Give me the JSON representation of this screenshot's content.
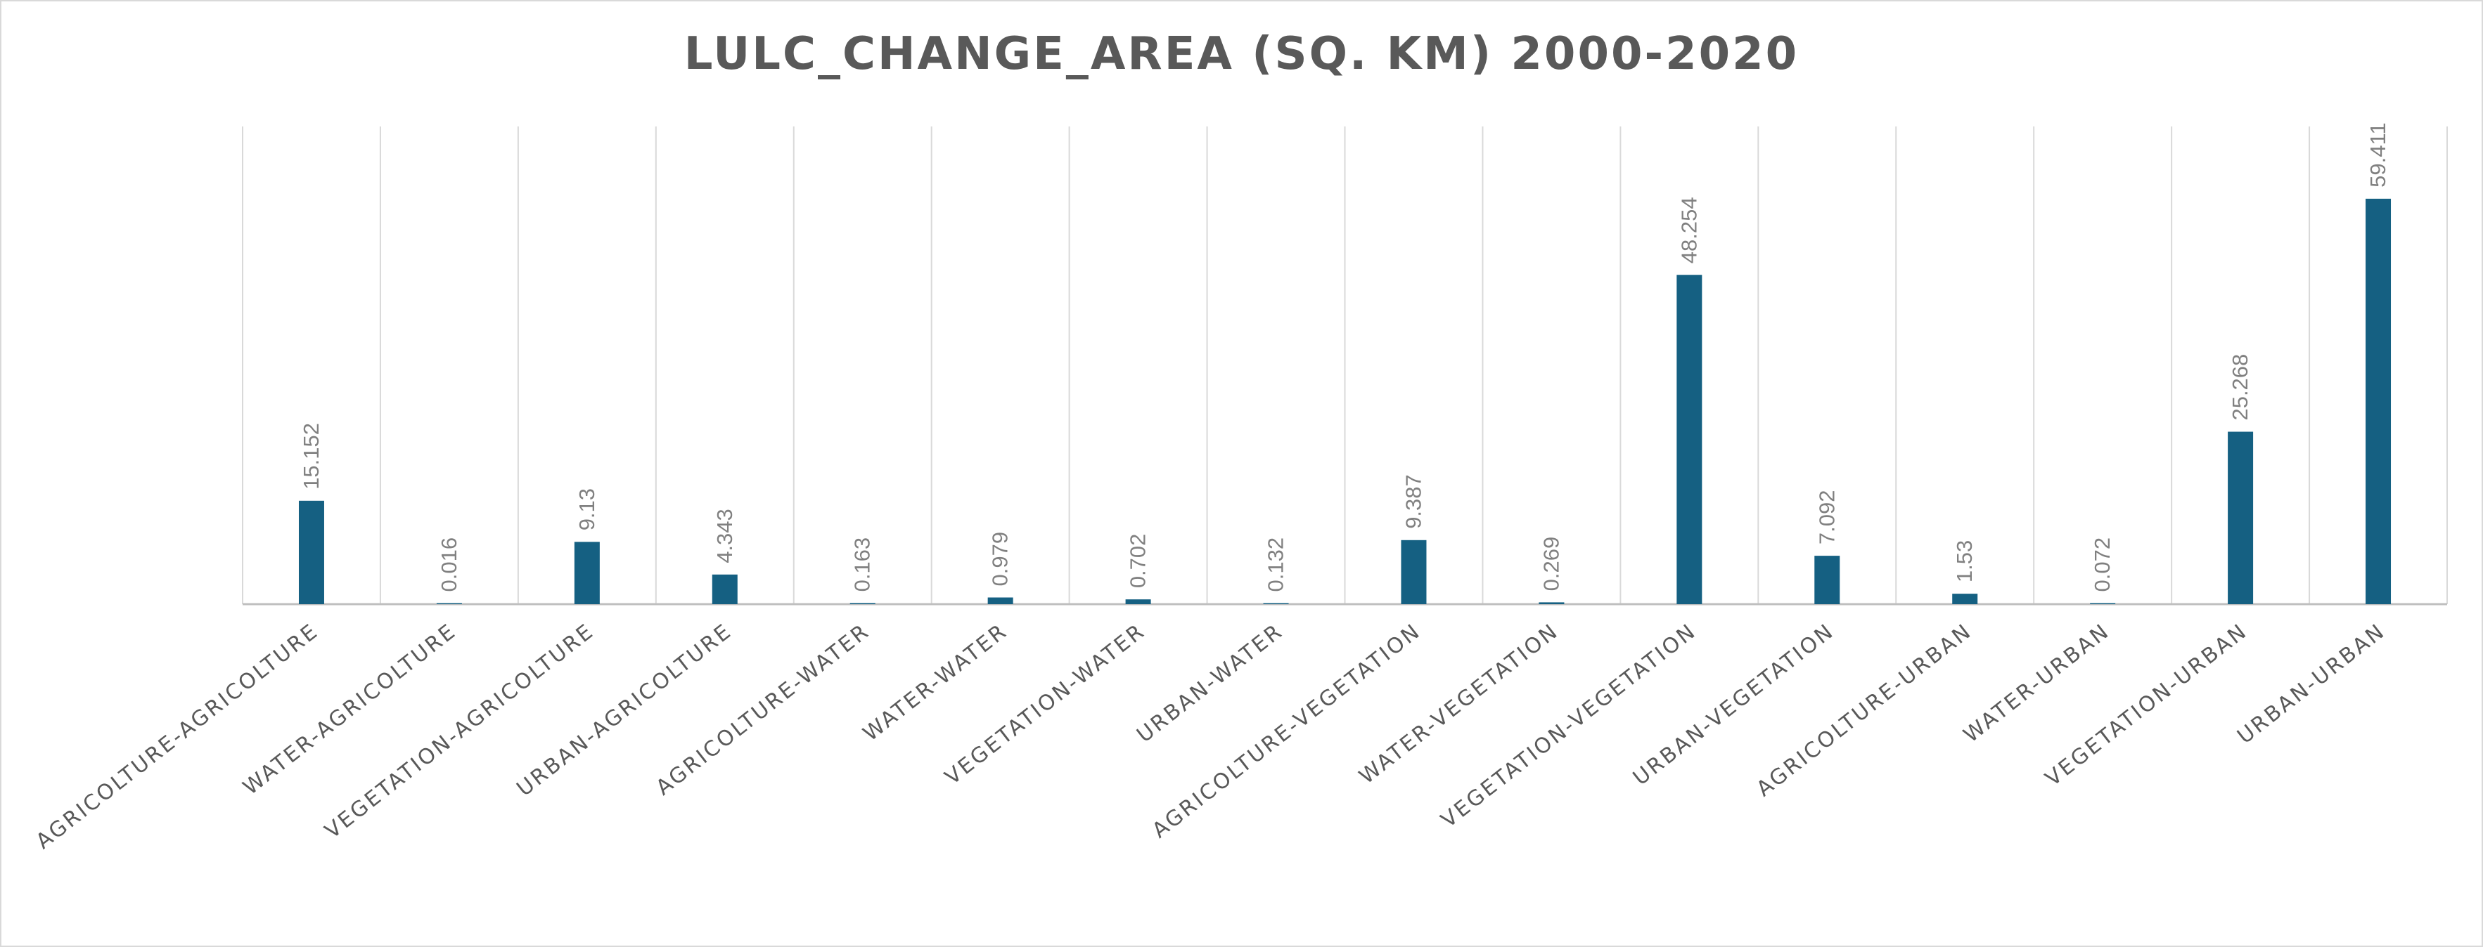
{
  "chart_data": {
    "type": "bar",
    "title": "LULC_CHANGE_AREA (SQ. KM) 2000-2020",
    "categories": [
      "AGRICOLTURE-AGRICOLTURE",
      "WATER-AGRICOLTURE",
      "VEGETATION-AGRICOLTURE",
      "URBAN-AGRICOLTURE",
      "AGRICOLTURE-WATER",
      "WATER-WATER",
      "VEGETATION-WATER",
      "URBAN-WATER",
      "AGRICOLTURE-VEGETATION",
      "WATER-VEGETATION",
      "VEGETATION-VEGETATION",
      "URBAN-VEGETATION",
      "AGRICOLTURE-URBAN",
      "WATER-URBAN",
      "VEGETATION-URBAN",
      "URBAN-URBAN"
    ],
    "values": [
      15.152,
      0.016,
      9.13,
      4.343,
      0.163,
      0.979,
      0.702,
      0.132,
      9.387,
      0.269,
      48.254,
      7.092,
      1.53,
      0.072,
      25.268,
      59.411
    ],
    "labels": [
      "15.152",
      "0.016",
      "9.13",
      "4.343",
      "0.163",
      "0.979",
      "0.702",
      "0.132",
      "9.387",
      "0.269",
      "48.254",
      "7.092",
      "1.53",
      "0.072",
      "25.268",
      "59.411"
    ],
    "xlabel": "",
    "ylabel": "",
    "ylim": [
      0,
      70
    ],
    "grid": "vertical",
    "legend": "none",
    "bar_color": "#156082",
    "grid_color": "#d9d9d9"
  }
}
